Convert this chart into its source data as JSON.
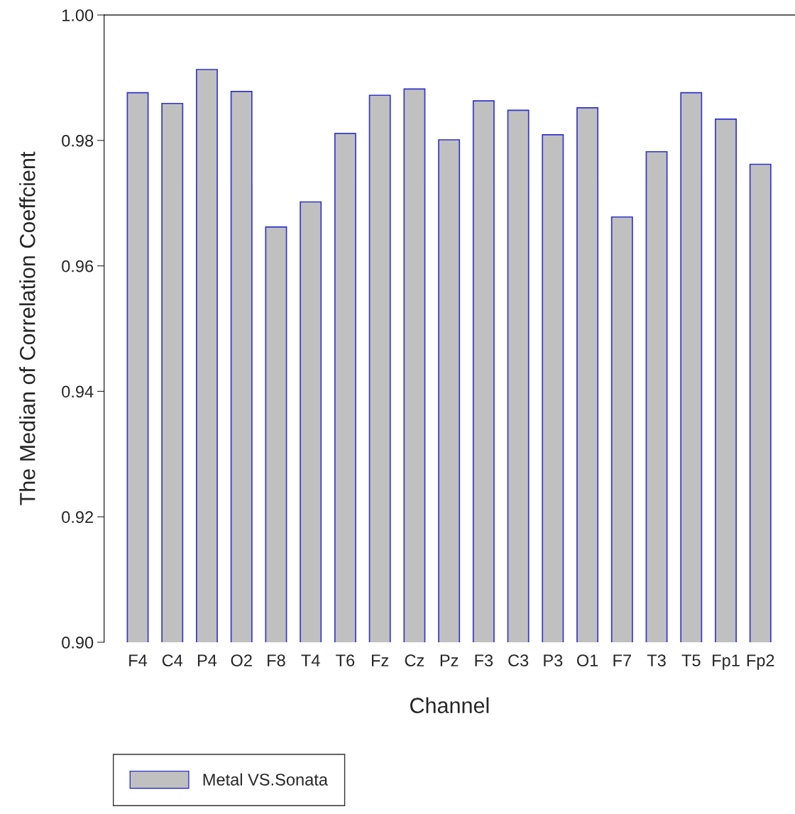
{
  "chart_data": {
    "type": "bar",
    "xlabel": "Channel",
    "ylabel": "The Median of Correlation Coeffcient",
    "categories": [
      "F4",
      "C4",
      "P4",
      "O2",
      "F8",
      "T4",
      "T6",
      "Fz",
      "Cz",
      "Pz",
      "F3",
      "C3",
      "P3",
      "O1",
      "F7",
      "T3",
      "T5",
      "Fp1",
      "Fp2"
    ],
    "series": [
      {
        "name": "Metal VS.Sonata",
        "color": "#c0c0c0",
        "values": [
          0.9876,
          0.9859,
          0.9913,
          0.9878,
          0.9662,
          0.9702,
          0.9811,
          0.9872,
          0.9882,
          0.9801,
          0.9863,
          0.9848,
          0.9809,
          0.9852,
          0.9678,
          0.9782,
          0.9876,
          0.9834,
          0.9762
        ]
      }
    ],
    "ylim": [
      0.9,
      1.0
    ],
    "yticks": [
      {
        "value": 0.9,
        "label": "0.90"
      },
      {
        "value": 0.92,
        "label": "0.92"
      },
      {
        "value": 0.94,
        "label": "0.94"
      },
      {
        "value": 0.96,
        "label": "0.96"
      },
      {
        "value": 0.98,
        "label": "0.98"
      },
      {
        "value": 1.0,
        "label": "1.00"
      }
    ],
    "grid": false,
    "legend": "bottom left"
  }
}
